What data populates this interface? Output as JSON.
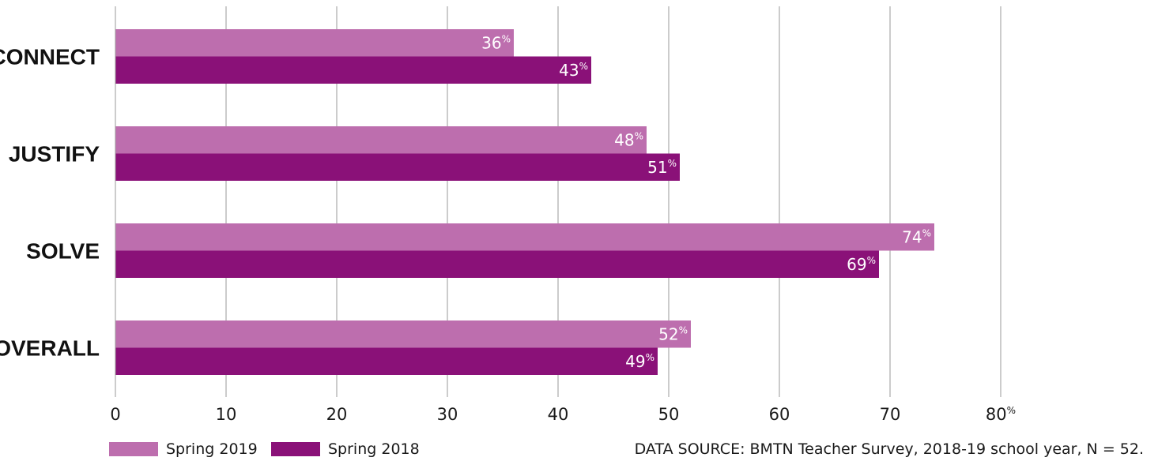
{
  "chart_data": {
    "type": "bar",
    "orientation": "horizontal",
    "categories": [
      "CONNECT",
      "JUSTIFY",
      "SOLVE",
      "OVERALL"
    ],
    "series": [
      {
        "name": "Spring 2019",
        "values": [
          36,
          48,
          74,
          52
        ],
        "color": "#bd6eae"
      },
      {
        "name": "Spring 2018",
        "values": [
          43,
          51,
          69,
          49
        ],
        "color": "#8a1178"
      }
    ],
    "value_suffix": "%",
    "xlim": [
      0,
      80
    ],
    "xticks": [
      "0",
      "10",
      "20",
      "30",
      "40",
      "50",
      "60",
      "70",
      "80"
    ],
    "x_unit": "%",
    "grid": true,
    "legend_position": "bottom-left",
    "source": "DATA SOURCE: BMTN Teacher Survey, 2018-19 school year, N = 52."
  }
}
